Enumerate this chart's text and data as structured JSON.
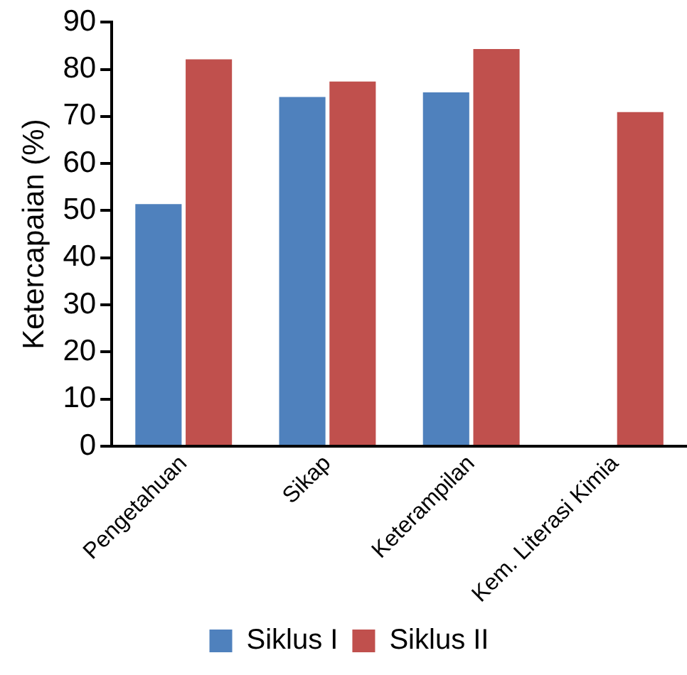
{
  "chart_data": {
    "type": "bar",
    "ylabel": "Ketercapaian (%)",
    "categories": [
      "Pengetahuan",
      "Sikap",
      "Keterampilan",
      "Kem. Literasi Kimia"
    ],
    "series": [
      {
        "name": "Siklus I",
        "color": "#4f81bd",
        "values": [
          51.4,
          74.1,
          75.1,
          null
        ]
      },
      {
        "name": "Siklus II",
        "color": "#c0504d",
        "values": [
          82.1,
          77.4,
          84.3,
          70.9
        ]
      }
    ],
    "ylim": [
      0,
      90
    ],
    "yticks": [
      0,
      10,
      20,
      30,
      40,
      50,
      60,
      70,
      80,
      90
    ],
    "grid": false,
    "legend": "bottom"
  }
}
